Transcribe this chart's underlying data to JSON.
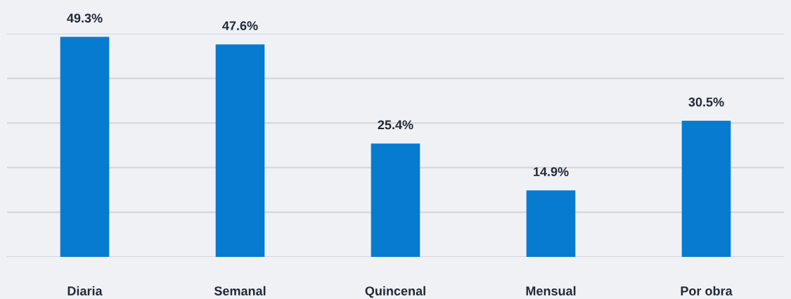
{
  "chart_data": {
    "type": "bar",
    "categories": [
      "Diaria",
      "Semanal",
      "Quincenal",
      "Mensual",
      "Por obra"
    ],
    "values": [
      49.3,
      47.6,
      25.4,
      14.9,
      30.5
    ],
    "value_labels": [
      "49.3%",
      "47.6%",
      "25.4%",
      "14.9%",
      "30.5%"
    ],
    "color": "#077bd0",
    "ylim": [
      0,
      50
    ],
    "yticks": [
      {
        "value": 0,
        "label": null
      },
      {
        "value": 10,
        "label": null
      },
      {
        "value": 20,
        "label": null
      },
      {
        "value": 30,
        "label": null
      },
      {
        "value": 40,
        "label": null
      },
      {
        "value": 50,
        "label": null
      }
    ],
    "tick_labels": "x",
    "grid": "y",
    "legend": false
  }
}
